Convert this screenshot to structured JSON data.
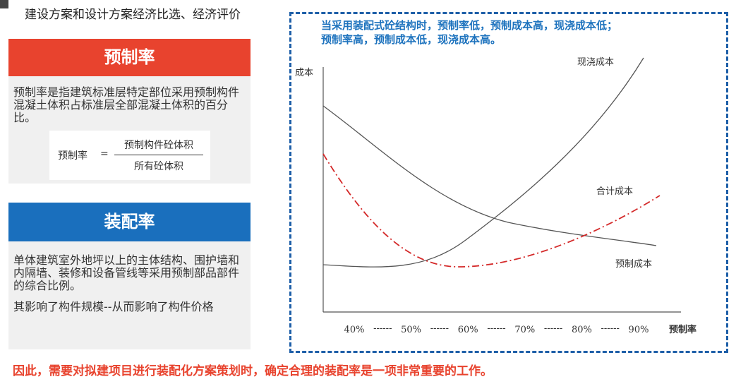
{
  "header": {
    "title": "建设方案和设计方案经济比选、经济评价"
  },
  "card1": {
    "heading": "预制率",
    "text": "预制率是指建筑标准层特定部位采用预制构件混凝土体积占标准层全部混凝土体积的百分比。",
    "formula": {
      "lhs": "预制率",
      "equals": "=",
      "numerator": "预制构件砼体积",
      "denominator": "所有砼体积"
    }
  },
  "card2": {
    "heading": "装配率",
    "paragraphs": [
      "单体建筑室外地坪以上的主体结构、围护墙和内隔墙、装修和设备管线等采用预制部品部件的综合比例。",
      "其影响了构件规模--从而影响了构件价格"
    ]
  },
  "chart_panel": {
    "note": [
      "当采用装配式砼结构时，预制率低，预制成本高，现浇成本低；",
      "预制率高，预制成本低，现浇成本高。"
    ],
    "y_label": "成本",
    "x_label": "预制率",
    "x_categories": [
      "40%",
      "50%",
      "60%",
      "70%",
      "80%",
      "90%"
    ],
    "x_separator": "------",
    "curve_labels": [
      "现浇成本",
      "合计成本",
      "预制成本"
    ]
  },
  "footer": "因此，需要对拟建项目进行装配化方案策划时，确定合理的装配率是一项非常重要的工作。"
}
